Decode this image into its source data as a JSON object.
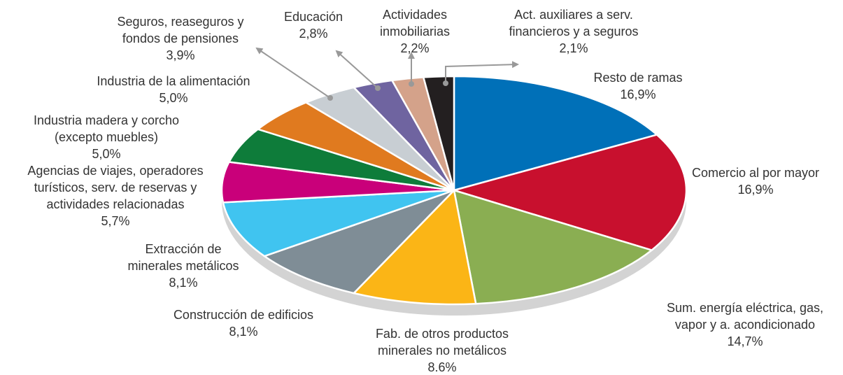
{
  "chart_data": {
    "type": "pie",
    "categories": [
      [
        "Resto de ramas"
      ],
      [
        "Comercio al por mayor"
      ],
      [
        "Sum. energía eléctrica, gas,",
        "vapor y a. acondicionado"
      ],
      [
        "Fab. de otros productos",
        "minerales no metálicos"
      ],
      [
        "Construcción de edificios"
      ],
      [
        "Extracción de",
        "minerales metálicos"
      ],
      [
        "Agencias de viajes, operadores",
        "turísticos, serv. de reservas y",
        "actividades relacionadas"
      ],
      [
        "Industria madera y corcho",
        "(excepto muebles)"
      ],
      [
        "Industria de la alimentación"
      ],
      [
        "Seguros, reaseguros y",
        "fondos de pensiones"
      ],
      [
        "Educación"
      ],
      [
        "Actividades",
        "inmobiliarias"
      ],
      [
        "Act. auxiliares a serv.",
        "financieros y a seguros"
      ]
    ],
    "values": [
      16.9,
      16.9,
      14.7,
      8.6,
      8.1,
      8.1,
      5.7,
      5.0,
      5.0,
      3.9,
      2.8,
      2.2,
      2.1
    ],
    "value_labels": [
      "16,9%",
      "16,9%",
      "14,7%",
      "8.6%",
      "8,1%",
      "8,1%",
      "5,7%",
      "5,0%",
      "5,0%",
      "3,9%",
      "2,8%",
      "2,2%",
      "2,1%"
    ],
    "colors": [
      "#0070b8",
      "#c8102e",
      "#8aae52",
      "#fbb516",
      "#7f8d96",
      "#40c4f0",
      "#c9007a",
      "#0e7c3a",
      "#e07a1f",
      "#c8ced3",
      "#6f64a0",
      "#d4a28a",
      "#231f20"
    ]
  }
}
